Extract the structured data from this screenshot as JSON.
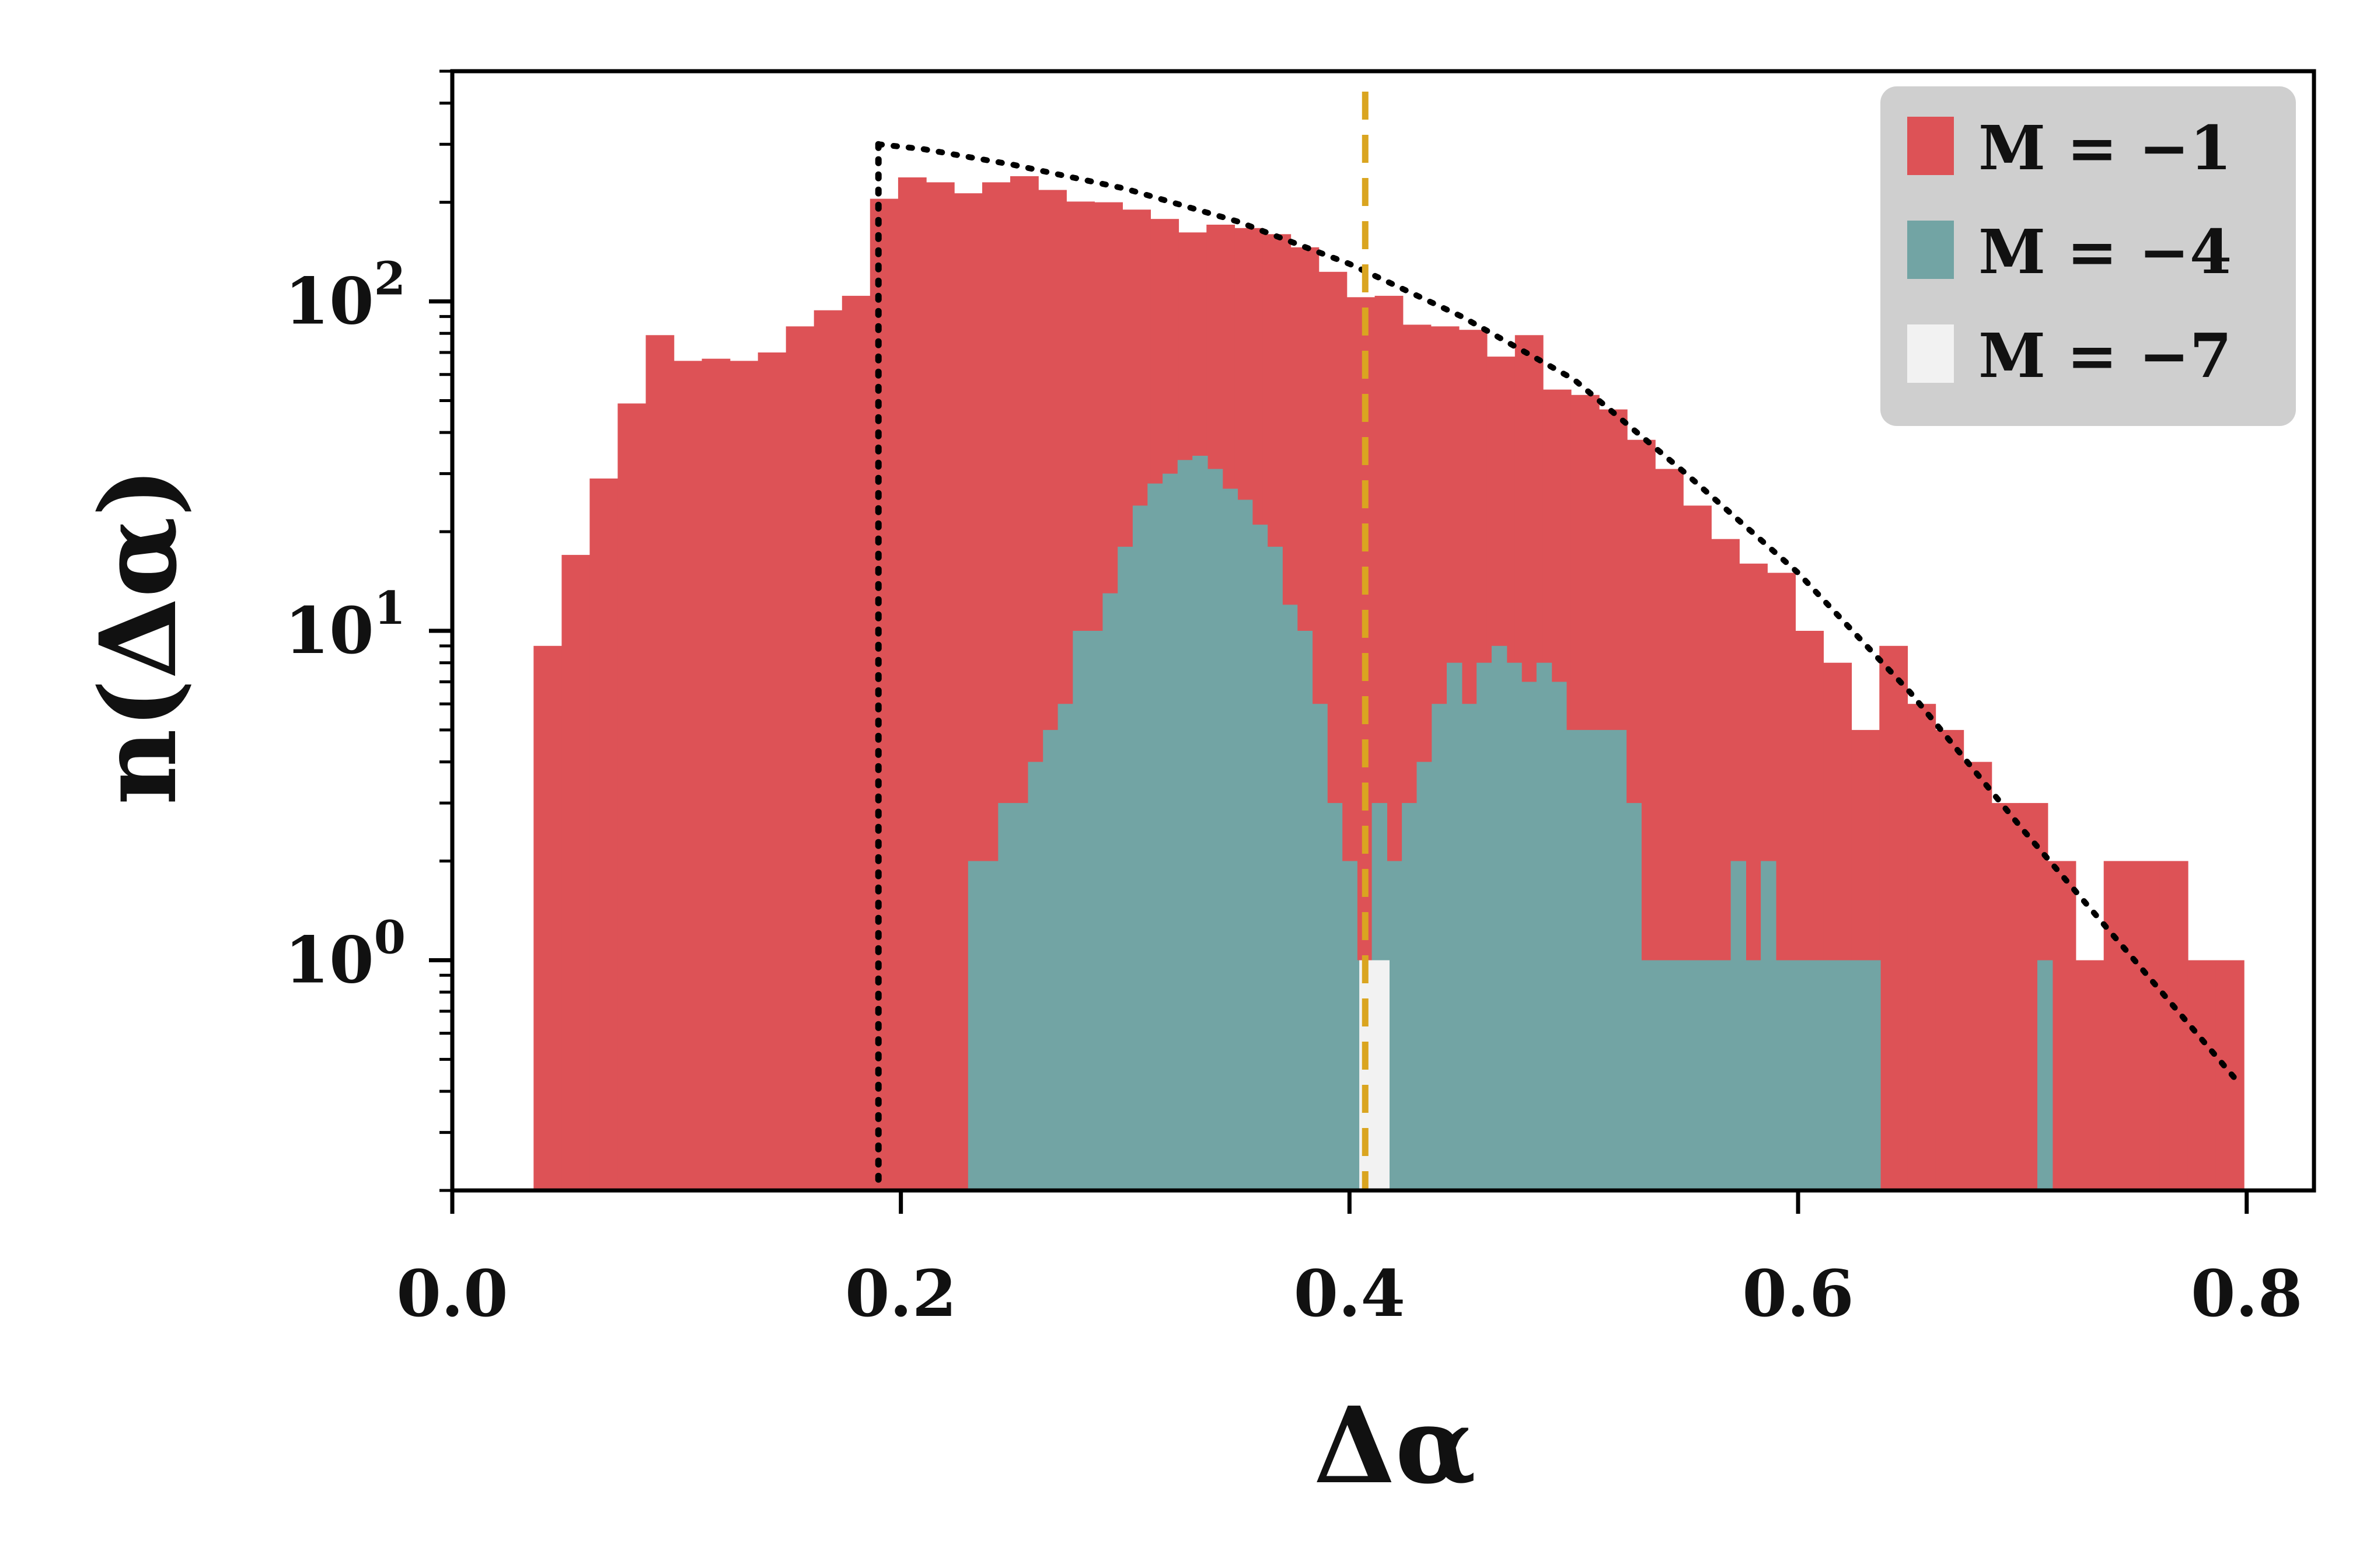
{
  "chart_data": {
    "type": "histogram",
    "xlabel": "Δα",
    "ylabel": "n(Δα)",
    "x_tick_labels": [
      "0.0",
      "0.2",
      "0.4",
      "0.6",
      "0.8"
    ],
    "y_tick_labels": [
      "10",
      "10",
      "10"
    ],
    "y_tick_exponents": [
      "0",
      "1",
      "2"
    ],
    "xlim": [
      0.0,
      0.83
    ],
    "ylim": [
      0.2,
      500
    ],
    "yscale": "log",
    "legend_position": "top-right",
    "series": [
      {
        "name": "M = −1",
        "color": "#dd5256",
        "bin_width": 0.0125,
        "bins": [
          [
            0.0425,
            9
          ],
          [
            0.055,
            17
          ],
          [
            0.0675,
            29
          ],
          [
            0.08,
            49
          ],
          [
            0.0925,
            79
          ],
          [
            0.105,
            66
          ],
          [
            0.1175,
            67
          ],
          [
            0.13,
            66
          ],
          [
            0.1425,
            70
          ],
          [
            0.155,
            84
          ],
          [
            0.1675,
            94
          ],
          [
            0.18,
            104
          ],
          [
            0.1925,
            205
          ],
          [
            0.205,
            238
          ],
          [
            0.2175,
            230
          ],
          [
            0.23,
            213
          ],
          [
            0.2425,
            230
          ],
          [
            0.255,
            240
          ],
          [
            0.2675,
            218
          ],
          [
            0.28,
            201
          ],
          [
            0.2925,
            200
          ],
          [
            0.305,
            190
          ],
          [
            0.3175,
            178
          ],
          [
            0.33,
            162
          ],
          [
            0.3425,
            171
          ],
          [
            0.355,
            167
          ],
          [
            0.3675,
            160
          ],
          [
            0.38,
            146
          ],
          [
            0.3925,
            123
          ],
          [
            0.405,
            103
          ],
          [
            0.4175,
            104
          ],
          [
            0.43,
            85
          ],
          [
            0.4425,
            84
          ],
          [
            0.455,
            82
          ],
          [
            0.4675,
            68
          ],
          [
            0.48,
            79
          ],
          [
            0.4925,
            54
          ],
          [
            0.505,
            52
          ],
          [
            0.5175,
            47
          ],
          [
            0.53,
            38
          ],
          [
            0.5425,
            31
          ],
          [
            0.555,
            24
          ],
          [
            0.5675,
            19
          ],
          [
            0.58,
            16
          ],
          [
            0.5925,
            15
          ],
          [
            0.605,
            10
          ],
          [
            0.6175,
            8
          ],
          [
            0.63,
            5
          ],
          [
            0.6425,
            9
          ],
          [
            0.655,
            6
          ],
          [
            0.6675,
            5
          ],
          [
            0.68,
            4
          ],
          [
            0.6925,
            3
          ],
          [
            0.705,
            3
          ],
          [
            0.7175,
            2
          ],
          [
            0.73,
            1
          ],
          [
            0.7425,
            2
          ],
          [
            0.755,
            2
          ],
          [
            0.7675,
            2
          ],
          [
            0.78,
            1
          ],
          [
            0.7925,
            1
          ]
        ]
      },
      {
        "name": "M = −4",
        "color": "#72a4a4",
        "bin_width": 0.00667,
        "bins": [
          [
            0.2333,
            2
          ],
          [
            0.24,
            2
          ],
          [
            0.2467,
            3
          ],
          [
            0.2533,
            3
          ],
          [
            0.26,
            4
          ],
          [
            0.2667,
            5
          ],
          [
            0.2733,
            6
          ],
          [
            0.28,
            10
          ],
          [
            0.2867,
            10
          ],
          [
            0.2933,
            13
          ],
          [
            0.3,
            18
          ],
          [
            0.3067,
            24
          ],
          [
            0.3133,
            28
          ],
          [
            0.32,
            30
          ],
          [
            0.3267,
            33
          ],
          [
            0.3333,
            34
          ],
          [
            0.34,
            31
          ],
          [
            0.3467,
            27
          ],
          [
            0.3533,
            25
          ],
          [
            0.36,
            21
          ],
          [
            0.3667,
            18
          ],
          [
            0.3733,
            12
          ],
          [
            0.38,
            10
          ],
          [
            0.3867,
            6
          ],
          [
            0.3933,
            3
          ],
          [
            0.4,
            2
          ],
          [
            0.4067,
            1
          ],
          [
            0.4133,
            3
          ],
          [
            0.42,
            2
          ],
          [
            0.4267,
            3
          ],
          [
            0.4333,
            4
          ],
          [
            0.44,
            6
          ],
          [
            0.4467,
            8
          ],
          [
            0.4533,
            6
          ],
          [
            0.46,
            8
          ],
          [
            0.4667,
            9
          ],
          [
            0.4733,
            8
          ],
          [
            0.48,
            7
          ],
          [
            0.4867,
            8
          ],
          [
            0.4933,
            7
          ],
          [
            0.5,
            5
          ],
          [
            0.5067,
            5
          ],
          [
            0.5133,
            5
          ],
          [
            0.52,
            5
          ],
          [
            0.5267,
            3
          ],
          [
            0.5333,
            1
          ],
          [
            0.54,
            1
          ],
          [
            0.5467,
            1
          ],
          [
            0.5533,
            1
          ],
          [
            0.56,
            1
          ],
          [
            0.5667,
            1
          ],
          [
            0.5733,
            2
          ],
          [
            0.58,
            1
          ],
          [
            0.5867,
            2
          ],
          [
            0.5933,
            1
          ],
          [
            0.6,
            1
          ],
          [
            0.6067,
            1
          ],
          [
            0.6133,
            1
          ],
          [
            0.62,
            1
          ],
          [
            0.6267,
            1
          ],
          [
            0.6333,
            1
          ],
          [
            0.71,
            1
          ]
        ]
      },
      {
        "name": "M = −7",
        "color": "#f2f2f2",
        "bin_width": 0.0083,
        "bins": [
          [
            0.4135,
            1
          ],
          [
            0.4085,
            1
          ]
        ]
      }
    ],
    "reference_curve": {
      "style": "dotted",
      "color": "#000000",
      "points": [
        [
          0.19,
          300
        ],
        [
          0.21,
          290
        ],
        [
          0.25,
          260
        ],
        [
          0.3,
          220
        ],
        [
          0.35,
          175
        ],
        [
          0.4,
          130
        ],
        [
          0.45,
          90
        ],
        [
          0.5,
          58
        ],
        [
          0.55,
          30
        ],
        [
          0.6,
          15
        ],
        [
          0.65,
          6.5
        ],
        [
          0.7,
          2.5
        ],
        [
          0.75,
          1.0
        ],
        [
          0.797,
          0.42
        ]
      ]
    },
    "vertical_lines": [
      {
        "x": 0.19,
        "style": "dotted",
        "color": "#000000"
      },
      {
        "x": 0.407,
        "style": "dashed",
        "color": "#daa520"
      }
    ]
  }
}
